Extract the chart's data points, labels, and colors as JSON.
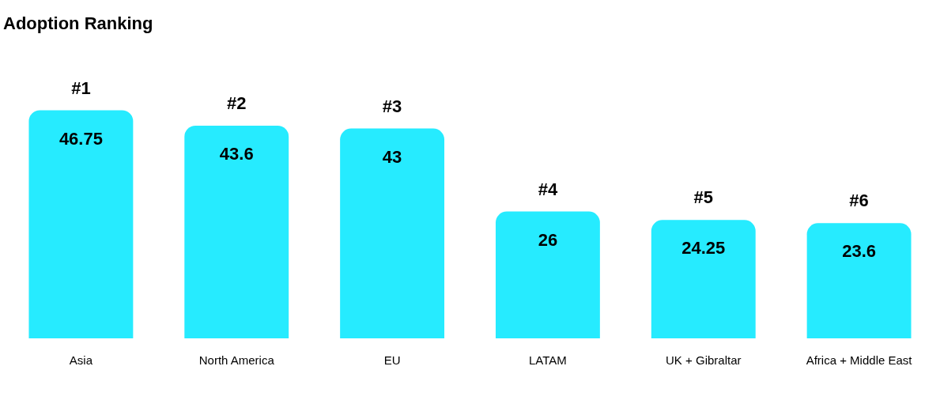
{
  "chart_data": {
    "type": "bar",
    "title": "Adoption Ranking",
    "categories": [
      "Asia",
      "North America",
      "EU",
      "LATAM",
      "UK + Gibraltar",
      "Africa + Middle East"
    ],
    "values": [
      46.75,
      43.6,
      43,
      26,
      24.25,
      23.6
    ],
    "color": "#26ebff",
    "data_labels": true,
    "grid": false,
    "legend": false,
    "annotations": [
      {
        "text": "#1",
        "x": "Asia",
        "y": 46.75
      },
      {
        "text": "#2",
        "x": "North America",
        "y": 43.6
      },
      {
        "text": "#3",
        "x": "EU",
        "y": 43
      },
      {
        "text": "#4",
        "x": "LATAM",
        "y": 26
      },
      {
        "text": "#5",
        "x": "UK + Gibraltar",
        "y": 24.25
      },
      {
        "text": "#6",
        "x": "Africa + Middle East",
        "y": 23.6
      }
    ]
  }
}
